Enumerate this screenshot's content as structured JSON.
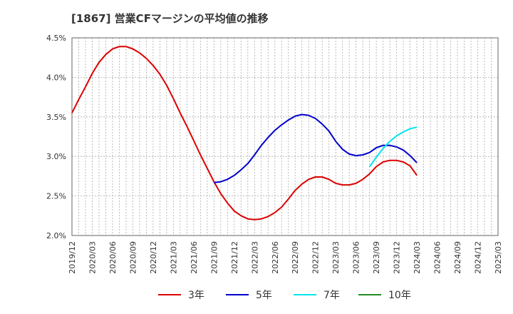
{
  "chart_data": {
    "type": "line",
    "title": "[1867]  営業CFマージンの平均値の推移",
    "xlabel": "",
    "ylabel": "",
    "ylim": [
      2.0,
      4.5
    ],
    "yticks": [
      "2.0%",
      "2.5%",
      "3.0%",
      "3.5%",
      "4.0%",
      "4.5%"
    ],
    "x_range": [
      "2019/12",
      "2025/03"
    ],
    "xticks": [
      "2019/12",
      "2020/03",
      "2020/06",
      "2020/09",
      "2020/12",
      "2021/03",
      "2021/06",
      "2021/09",
      "2021/12",
      "2022/03",
      "2022/06",
      "2022/09",
      "2022/12",
      "2023/03",
      "2023/06",
      "2023/09",
      "2023/12",
      "2024/03",
      "2024/06",
      "2024/09",
      "2024/12",
      "2025/03"
    ],
    "grid": true,
    "legend_position": "bottom",
    "series": [
      {
        "name": "3年",
        "color": "#dd0000",
        "points": [
          [
            "2019/12",
            3.55
          ],
          [
            "2020/01",
            3.72
          ],
          [
            "2020/02",
            3.88
          ],
          [
            "2020/03",
            4.05
          ],
          [
            "2020/04",
            4.19
          ],
          [
            "2020/05",
            4.29
          ],
          [
            "2020/06",
            4.36
          ],
          [
            "2020/07",
            4.39
          ],
          [
            "2020/08",
            4.39
          ],
          [
            "2020/09",
            4.36
          ],
          [
            "2020/10",
            4.31
          ],
          [
            "2020/11",
            4.24
          ],
          [
            "2020/12",
            4.15
          ],
          [
            "2021/01",
            4.04
          ],
          [
            "2021/02",
            3.9
          ],
          [
            "2021/03",
            3.73
          ],
          [
            "2021/04",
            3.55
          ],
          [
            "2021/05",
            3.38
          ],
          [
            "2021/06",
            3.2
          ],
          [
            "2021/07",
            3.02
          ],
          [
            "2021/08",
            2.85
          ],
          [
            "2021/09",
            2.68
          ],
          [
            "2021/10",
            2.53
          ],
          [
            "2021/11",
            2.41
          ],
          [
            "2021/12",
            2.31
          ],
          [
            "2022/01",
            2.25
          ],
          [
            "2022/02",
            2.21
          ],
          [
            "2022/03",
            2.2
          ],
          [
            "2022/04",
            2.21
          ],
          [
            "2022/05",
            2.24
          ],
          [
            "2022/06",
            2.29
          ],
          [
            "2022/07",
            2.36
          ],
          [
            "2022/08",
            2.46
          ],
          [
            "2022/09",
            2.57
          ],
          [
            "2022/10",
            2.65
          ],
          [
            "2022/11",
            2.71
          ],
          [
            "2022/12",
            2.74
          ],
          [
            "2023/01",
            2.74
          ],
          [
            "2023/02",
            2.71
          ],
          [
            "2023/03",
            2.66
          ],
          [
            "2023/04",
            2.64
          ],
          [
            "2023/05",
            2.64
          ],
          [
            "2023/06",
            2.66
          ],
          [
            "2023/07",
            2.71
          ],
          [
            "2023/08",
            2.78
          ],
          [
            "2023/09",
            2.87
          ],
          [
            "2023/10",
            2.93
          ],
          [
            "2023/11",
            2.95
          ],
          [
            "2023/12",
            2.95
          ],
          [
            "2024/01",
            2.93
          ],
          [
            "2024/02",
            2.88
          ],
          [
            "2024/03",
            2.76
          ]
        ]
      },
      {
        "name": "5年",
        "color": "#0000cc",
        "points": [
          [
            "2021/09",
            2.67
          ],
          [
            "2021/10",
            2.68
          ],
          [
            "2021/11",
            2.71
          ],
          [
            "2021/12",
            2.76
          ],
          [
            "2022/01",
            2.83
          ],
          [
            "2022/02",
            2.91
          ],
          [
            "2022/03",
            3.02
          ],
          [
            "2022/04",
            3.14
          ],
          [
            "2022/05",
            3.24
          ],
          [
            "2022/06",
            3.33
          ],
          [
            "2022/07",
            3.4
          ],
          [
            "2022/08",
            3.46
          ],
          [
            "2022/09",
            3.51
          ],
          [
            "2022/10",
            3.53
          ],
          [
            "2022/11",
            3.52
          ],
          [
            "2022/12",
            3.48
          ],
          [
            "2023/01",
            3.41
          ],
          [
            "2023/02",
            3.32
          ],
          [
            "2023/03",
            3.19
          ],
          [
            "2023/04",
            3.09
          ],
          [
            "2023/05",
            3.03
          ],
          [
            "2023/06",
            3.01
          ],
          [
            "2023/07",
            3.02
          ],
          [
            "2023/08",
            3.05
          ],
          [
            "2023/09",
            3.11
          ],
          [
            "2023/10",
            3.14
          ],
          [
            "2023/11",
            3.14
          ],
          [
            "2023/12",
            3.12
          ],
          [
            "2024/01",
            3.08
          ],
          [
            "2024/02",
            3.01
          ],
          [
            "2024/03",
            2.92
          ]
        ]
      },
      {
        "name": "7年",
        "color": "#00e5ee",
        "points": [
          [
            "2023/08",
            2.87
          ],
          [
            "2023/09",
            2.99
          ],
          [
            "2023/10",
            3.1
          ],
          [
            "2023/11",
            3.19
          ],
          [
            "2023/12",
            3.26
          ],
          [
            "2024/01",
            3.31
          ],
          [
            "2024/02",
            3.35
          ],
          [
            "2024/03",
            3.37
          ]
        ]
      },
      {
        "name": "10年",
        "color": "#228b22",
        "points": []
      }
    ]
  }
}
